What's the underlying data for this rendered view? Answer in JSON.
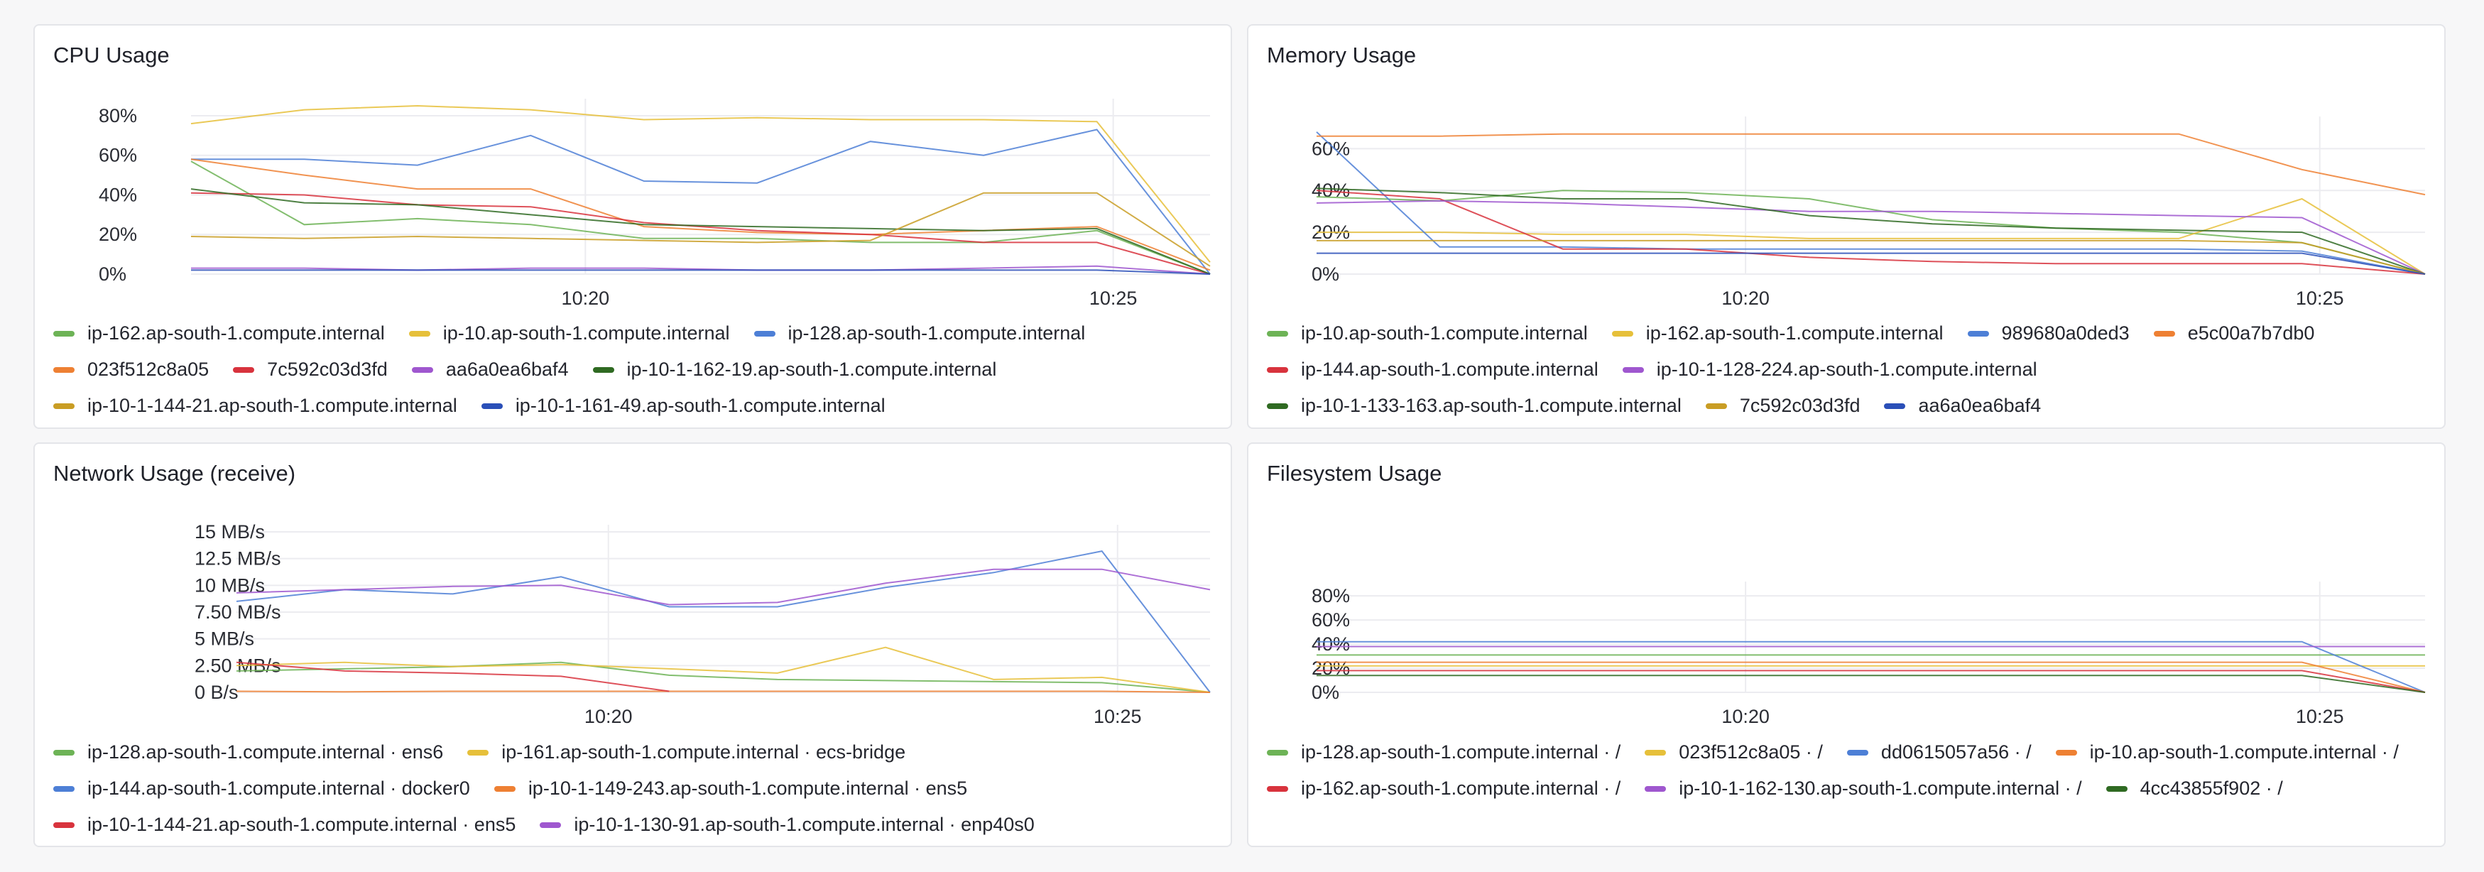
{
  "charts": [
    {
      "id": "cpu",
      "title": "CPU Usage",
      "y_ticks": [
        "0%",
        "20%",
        "40%",
        "60%",
        "80%"
      ],
      "x_ticks": [
        "10:20",
        "10:25"
      ],
      "legend": [
        {
          "name": "ip-162.ap-south-1.compute.internal",
          "color": "#6db356"
        },
        {
          "name": "ip-10.ap-south-1.compute.internal",
          "color": "#e6c03a"
        },
        {
          "name": "ip-128.ap-south-1.compute.internal",
          "color": "#4d7fd6"
        },
        {
          "name": "023f512c8a05",
          "color": "#ee8033"
        },
        {
          "name": "7c592c03d3fd",
          "color": "#d8333d"
        },
        {
          "name": "aa6a0ea6baf4",
          "color": "#9f57cf"
        },
        {
          "name": "ip-10-1-162-19.ap-south-1.compute.internal",
          "color": "#2f6a22"
        },
        {
          "name": "ip-10-1-144-21.ap-south-1.compute.internal",
          "color": "#c99d24"
        },
        {
          "name": "ip-10-1-161-49.ap-south-1.compute.internal",
          "color": "#2a4fb8"
        }
      ]
    },
    {
      "id": "memory",
      "title": "Memory Usage",
      "y_ticks": [
        "0%",
        "20%",
        "40%",
        "60%"
      ],
      "x_ticks": [
        "10:20",
        "10:25"
      ],
      "legend": [
        {
          "name": "ip-10.ap-south-1.compute.internal",
          "color": "#6db356"
        },
        {
          "name": "ip-162.ap-south-1.compute.internal",
          "color": "#e6c03a"
        },
        {
          "name": "989680a0ded3",
          "color": "#4d7fd6"
        },
        {
          "name": "e5c00a7b7db0",
          "color": "#ee8033"
        },
        {
          "name": "ip-144.ap-south-1.compute.internal",
          "color": "#d8333d"
        },
        {
          "name": "ip-10-1-128-224.ap-south-1.compute.internal",
          "color": "#9f57cf"
        },
        {
          "name": "ip-10-1-133-163.ap-south-1.compute.internal",
          "color": "#2f6a22"
        },
        {
          "name": "7c592c03d3fd",
          "color": "#c99d24"
        },
        {
          "name": "aa6a0ea6baf4",
          "color": "#2a4fb8"
        }
      ]
    },
    {
      "id": "network",
      "title": "Network Usage (receive)",
      "y_ticks": [
        "0 B/s",
        "2.50 MB/s",
        "5 MB/s",
        "7.50 MB/s",
        "10 MB/s",
        "12.5 MB/s",
        "15 MB/s"
      ],
      "x_ticks": [
        "10:20",
        "10:25"
      ],
      "legend": [
        {
          "name": "ip-128.ap-south-1.compute.internal · ens6",
          "color": "#6db356"
        },
        {
          "name": "ip-161.ap-south-1.compute.internal · ecs-bridge",
          "color": "#e6c03a"
        },
        {
          "name": "ip-144.ap-south-1.compute.internal · docker0",
          "color": "#4d7fd6"
        },
        {
          "name": "ip-10-1-149-243.ap-south-1.compute.internal · ens5",
          "color": "#ee8033"
        },
        {
          "name": "ip-10-1-144-21.ap-south-1.compute.internal · ens5",
          "color": "#d8333d"
        },
        {
          "name": "ip-10-1-130-91.ap-south-1.compute.internal · enp40s0",
          "color": "#9f57cf"
        }
      ]
    },
    {
      "id": "filesystem",
      "title": "Filesystem Usage",
      "y_ticks": [
        "0%",
        "20%",
        "40%",
        "60%",
        "80%"
      ],
      "x_ticks": [
        "10:20",
        "10:25"
      ],
      "legend": [
        {
          "name": "ip-128.ap-south-1.compute.internal · /",
          "color": "#6db356"
        },
        {
          "name": "023f512c8a05 · /",
          "color": "#e6c03a"
        },
        {
          "name": "dd0615057a56 · /",
          "color": "#4d7fd6"
        },
        {
          "name": "ip-10.ap-south-1.compute.internal · /",
          "color": "#ee8033"
        },
        {
          "name": "ip-162.ap-south-1.compute.internal · /",
          "color": "#d8333d"
        },
        {
          "name": "ip-10-1-162-130.ap-south-1.compute.internal · /",
          "color": "#9f57cf"
        },
        {
          "name": "4cc43855f902 · /",
          "color": "#2f6a22"
        }
      ]
    }
  ],
  "chart_data": [
    {
      "type": "line",
      "title": "CPU Usage",
      "x": [
        "10:17",
        "10:18",
        "10:19",
        "10:20",
        "10:21",
        "10:22",
        "10:23",
        "10:24",
        "10:25",
        "10:26"
      ],
      "x_tick_labels": [
        "10:20",
        "10:25"
      ],
      "ylim": [
        0,
        0.85
      ],
      "y_format": "percent",
      "grid": true,
      "legend_position": "bottom",
      "series": [
        {
          "name": "ip-162.ap-south-1.compute.internal",
          "color": "#6db356",
          "values": [
            0.57,
            0.25,
            0.28,
            0.25,
            0.18,
            0.18,
            0.16,
            0.16,
            0.22,
            0.0
          ]
        },
        {
          "name": "ip-10.ap-south-1.compute.internal",
          "color": "#e6c03a",
          "values": [
            0.76,
            0.83,
            0.85,
            0.83,
            0.78,
            0.79,
            0.78,
            0.78,
            0.77,
            0.06
          ]
        },
        {
          "name": "ip-128.ap-south-1.compute.internal",
          "color": "#4d7fd6",
          "values": [
            0.58,
            0.58,
            0.55,
            0.7,
            0.47,
            0.46,
            0.67,
            0.6,
            0.73,
            0.0
          ]
        },
        {
          "name": "023f512c8a05",
          "color": "#ee8033",
          "values": [
            0.58,
            0.5,
            0.43,
            0.43,
            0.24,
            0.21,
            0.2,
            0.22,
            0.24,
            0.02
          ]
        },
        {
          "name": "7c592c03d3fd",
          "color": "#d8333d",
          "values": [
            0.41,
            0.4,
            0.35,
            0.34,
            0.26,
            0.22,
            0.2,
            0.16,
            0.16,
            0.0
          ]
        },
        {
          "name": "aa6a0ea6baf4",
          "color": "#9f57cf",
          "values": [
            0.03,
            0.03,
            0.02,
            0.03,
            0.03,
            0.02,
            0.02,
            0.03,
            0.04,
            0.0
          ]
        },
        {
          "name": "ip-10-1-162-19.ap-south-1.compute.internal",
          "color": "#2f6a22",
          "values": [
            0.43,
            0.36,
            0.35,
            0.3,
            0.25,
            0.24,
            0.23,
            0.22,
            0.23,
            0.0
          ]
        },
        {
          "name": "ip-10-1-144-21.ap-south-1.compute.internal",
          "color": "#c99d24",
          "values": [
            0.19,
            0.18,
            0.19,
            0.18,
            0.17,
            0.16,
            0.17,
            0.41,
            0.41,
            0.04
          ]
        },
        {
          "name": "ip-10-1-161-49.ap-south-1.compute.internal",
          "color": "#2a4fb8",
          "values": [
            0.02,
            0.02,
            0.02,
            0.02,
            0.02,
            0.02,
            0.02,
            0.02,
            0.02,
            0.0
          ]
        }
      ]
    },
    {
      "type": "line",
      "title": "Memory Usage",
      "x": [
        "10:17",
        "10:18",
        "10:19",
        "10:20",
        "10:21",
        "10:22",
        "10:23",
        "10:24",
        "10:25",
        "10:26"
      ],
      "x_tick_labels": [
        "10:20",
        "10:25"
      ],
      "ylim": [
        0,
        0.72
      ],
      "y_format": "percent",
      "grid": true,
      "legend_position": "bottom",
      "series": [
        {
          "name": "ip-10.ap-south-1.compute.internal",
          "color": "#6db356",
          "values": [
            0.37,
            0.35,
            0.4,
            0.39,
            0.36,
            0.26,
            0.22,
            0.2,
            0.15,
            0.0
          ]
        },
        {
          "name": "ip-162.ap-south-1.compute.internal",
          "color": "#e6c03a",
          "values": [
            0.2,
            0.2,
            0.19,
            0.19,
            0.17,
            0.17,
            0.17,
            0.17,
            0.36,
            0.0
          ]
        },
        {
          "name": "989680a0ded3",
          "color": "#4d7fd6",
          "values": [
            0.68,
            0.13,
            0.13,
            0.12,
            0.12,
            0.12,
            0.12,
            0.12,
            0.11,
            0.0
          ]
        },
        {
          "name": "e5c00a7b7db0",
          "color": "#ee8033",
          "values": [
            0.66,
            0.66,
            0.67,
            0.67,
            0.67,
            0.67,
            0.67,
            0.67,
            0.5,
            0.38
          ]
        },
        {
          "name": "ip-144.ap-south-1.compute.internal",
          "color": "#d8333d",
          "values": [
            0.4,
            0.36,
            0.12,
            0.12,
            0.08,
            0.06,
            0.05,
            0.05,
            0.05,
            0.0
          ]
        },
        {
          "name": "ip-10-1-128-224.ap-south-1.compute.internal",
          "color": "#9f57cf",
          "values": [
            0.34,
            0.35,
            0.34,
            0.32,
            0.3,
            0.3,
            0.29,
            0.28,
            0.27,
            0.0
          ]
        },
        {
          "name": "ip-10-1-133-163.ap-south-1.compute.internal",
          "color": "#2f6a22",
          "values": [
            0.41,
            0.39,
            0.36,
            0.36,
            0.28,
            0.24,
            0.22,
            0.21,
            0.2,
            0.0
          ]
        },
        {
          "name": "7c592c03d3fd",
          "color": "#c99d24",
          "values": [
            0.16,
            0.16,
            0.16,
            0.16,
            0.16,
            0.16,
            0.16,
            0.16,
            0.15,
            0.0
          ]
        },
        {
          "name": "aa6a0ea6baf4",
          "color": "#2a4fb8",
          "values": [
            0.1,
            0.1,
            0.1,
            0.1,
            0.1,
            0.1,
            0.1,
            0.1,
            0.1,
            0.0
          ]
        }
      ]
    },
    {
      "type": "line",
      "title": "Network Usage (receive)",
      "x": [
        "10:17",
        "10:18",
        "10:19",
        "10:20",
        "10:21",
        "10:22",
        "10:23",
        "10:24",
        "10:25",
        "10:26"
      ],
      "x_tick_labels": [
        "10:20",
        "10:25"
      ],
      "ylim": [
        0,
        15
      ],
      "y_unit": "MB/s",
      "grid": true,
      "legend_position": "bottom",
      "series": [
        {
          "name": "ip-128.ap-south-1.compute.internal · ens6",
          "color": "#6db356",
          "values": [
            2.0,
            2.2,
            2.4,
            2.8,
            1.6,
            1.2,
            1.1,
            1.0,
            0.9,
            0.0
          ]
        },
        {
          "name": "ip-161.ap-south-1.compute.internal · ecs-bridge",
          "color": "#e6c03a",
          "values": [
            2.5,
            2.8,
            2.4,
            2.6,
            2.2,
            1.8,
            4.2,
            1.2,
            1.4,
            0.0
          ]
        },
        {
          "name": "ip-144.ap-south-1.compute.internal · docker0",
          "color": "#4d7fd6",
          "values": [
            8.5,
            9.6,
            9.2,
            10.8,
            8.0,
            8.0,
            9.8,
            11.2,
            13.2,
            0.0
          ]
        },
        {
          "name": "ip-10-1-149-243.ap-south-1.compute.internal · ens5",
          "color": "#ee8033",
          "values": [
            0.1,
            0.05,
            0.1,
            0.1,
            0.1,
            0.1,
            0.1,
            0.1,
            0.1,
            0.0
          ]
        },
        {
          "name": "ip-10-1-144-21.ap-south-1.compute.internal · ens5",
          "color": "#d8333d",
          "values": [
            2.8,
            2.0,
            1.8,
            1.5,
            0.1,
            null,
            null,
            null,
            null,
            null
          ]
        },
        {
          "name": "ip-10-1-130-91.ap-south-1.compute.internal · enp40s0",
          "color": "#9f57cf",
          "values": [
            9.3,
            9.6,
            9.9,
            10.0,
            8.2,
            8.4,
            10.2,
            11.5,
            11.5,
            9.6
          ]
        }
      ]
    },
    {
      "type": "line",
      "title": "Filesystem Usage",
      "x": [
        "10:17",
        "10:18",
        "10:19",
        "10:20",
        "10:21",
        "10:22",
        "10:23",
        "10:24",
        "10:25",
        "10:26"
      ],
      "x_tick_labels": [
        "10:20",
        "10:25"
      ],
      "ylim": [
        0,
        0.86
      ],
      "y_format": "percent",
      "grid": true,
      "legend_position": "bottom",
      "series": [
        {
          "name": "ip-128.ap-south-1.compute.internal · /",
          "color": "#6db356",
          "values": [
            0.31,
            0.31,
            0.31,
            0.31,
            0.31,
            0.31,
            0.31,
            0.31,
            0.31,
            0.31
          ]
        },
        {
          "name": "023f512c8a05 · /",
          "color": "#e6c03a",
          "values": [
            0.22,
            0.22,
            0.22,
            0.22,
            0.22,
            0.22,
            0.22,
            0.22,
            0.22,
            0.22
          ]
        },
        {
          "name": "dd0615057a56 · /",
          "color": "#4d7fd6",
          "values": [
            0.42,
            0.42,
            0.42,
            0.42,
            0.42,
            0.42,
            0.42,
            0.42,
            0.42,
            0.0
          ]
        },
        {
          "name": "ip-10.ap-south-1.compute.internal · /",
          "color": "#ee8033",
          "values": [
            0.25,
            0.25,
            0.25,
            0.25,
            0.25,
            0.25,
            0.25,
            0.25,
            0.25,
            0.0
          ]
        },
        {
          "name": "ip-162.ap-south-1.compute.internal · /",
          "color": "#d8333d",
          "values": [
            0.18,
            0.18,
            0.18,
            0.18,
            0.18,
            0.18,
            0.18,
            0.18,
            0.18,
            0.0
          ]
        },
        {
          "name": "ip-10-1-162-130.ap-south-1.compute.internal · /",
          "color": "#9f57cf",
          "values": [
            0.38,
            0.38,
            0.38,
            0.38,
            0.38,
            0.38,
            0.38,
            0.38,
            0.38,
            0.38
          ]
        },
        {
          "name": "4cc43855f902 · /",
          "color": "#2f6a22",
          "values": [
            0.14,
            0.14,
            0.14,
            0.14,
            0.14,
            0.14,
            0.14,
            0.14,
            0.14,
            0.0
          ]
        }
      ]
    }
  ]
}
